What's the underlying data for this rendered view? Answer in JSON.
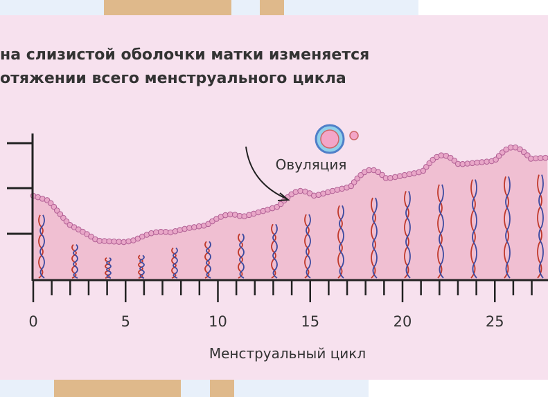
{
  "title_lines": [
    "на слизистой оболочки матки изменяется",
    "отяжении всего менструального цикла"
  ],
  "annotation": "Овуляция",
  "x_axis": {
    "tick_labels": [
      0,
      5,
      10,
      15,
      20,
      25
    ],
    "label": "Менструальный цикл"
  }
}
